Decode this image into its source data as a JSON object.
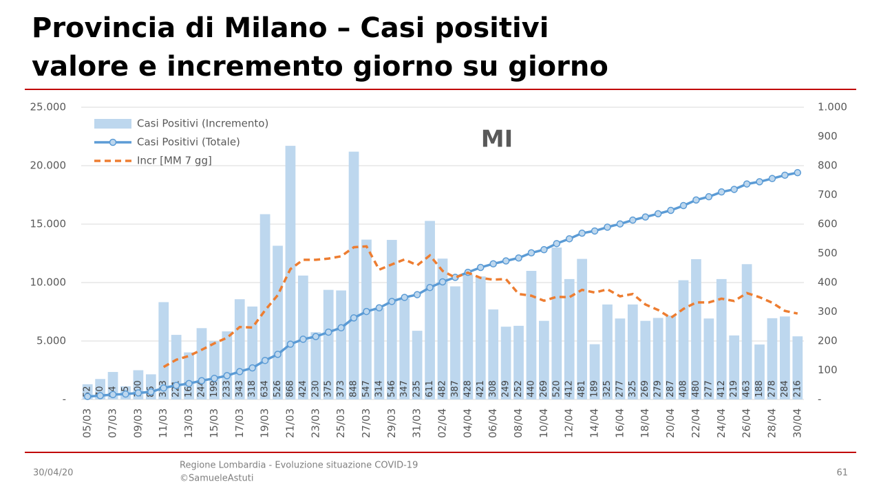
{
  "slide": {
    "title": [
      "Provincia di Milano – Casi positivi",
      "valore e incremento giorno su giorno"
    ],
    "footer_date": "30/04/20",
    "footer_source": "Regione Lombardia - Evoluzione situazione COVID-19",
    "footer_credit": "©SamueleAstuti",
    "page_number": "61"
  },
  "chart_data": {
    "type": "combo",
    "annotation": "MI",
    "legend": "upper left",
    "grid": true,
    "categories": [
      "05/03",
      null,
      "07/03",
      null,
      "09/03",
      null,
      "11/03",
      null,
      "13/03",
      null,
      "15/03",
      null,
      "17/03",
      null,
      "19/03",
      null,
      "21/03",
      null,
      "23/03",
      null,
      "25/03",
      null,
      "27/03",
      null,
      "29/03",
      null,
      "31/03",
      null,
      "02/04",
      null,
      "04/04",
      null,
      "06/04",
      null,
      "08/04",
      null,
      "10/04",
      null,
      "12/04",
      null,
      "14/04",
      null,
      "16/04",
      null,
      "18/04",
      null,
      "20/04",
      null,
      "22/04",
      null,
      "24/04",
      null,
      "26/04",
      null,
      "28/04",
      null,
      "30/04"
    ],
    "series": [
      {
        "name": "Casi Positivi (Incremento)",
        "type": "bar",
        "axis": "y2",
        "color": "#bdd7ee",
        "data_labels": true,
        "values": [
          52,
          70,
          94,
          45,
          100,
          86,
          333,
          221,
          161,
          244,
          199,
          233,
          343,
          318,
          634,
          526,
          868,
          424,
          230,
          375,
          373,
          848,
          547,
          314,
          546,
          347,
          235,
          611,
          482,
          387,
          428,
          421,
          308,
          249,
          252,
          440,
          269,
          520,
          412,
          481,
          189,
          325,
          277,
          325,
          269,
          279,
          287,
          408,
          480,
          277,
          412,
          219,
          463,
          188,
          278,
          284,
          216
        ]
      },
      {
        "name": "Casi Positivi (Totale)",
        "type": "line",
        "color": "#5b9bd5",
        "marker": "circle",
        "line_style": "solid",
        "values": [
          252,
          322,
          416,
          461,
          561,
          647,
          980,
          1201,
          1362,
          1606,
          1805,
          2038,
          2381,
          2699,
          3333,
          3859,
          4727,
          5151,
          5381,
          5756,
          6129,
          6977,
          7524,
          7838,
          8384,
          8731,
          8966,
          9577,
          10059,
          10446,
          10874,
          11295,
          11603,
          11852,
          12104,
          12544,
          12813,
          13333,
          13745,
          14226,
          14415,
          14740,
          15017,
          15342,
          15611,
          15890,
          16177,
          16585,
          17065,
          17342,
          17754,
          17973,
          18436,
          18624,
          18902,
          19186,
          19402
        ]
      },
      {
        "name": "Incr [MM 7 gg]",
        "type": "line",
        "axis": "y2",
        "color": "#ed7d31",
        "line_style": "dashed",
        "values": [
          null,
          null,
          null,
          null,
          null,
          null,
          111,
          136,
          149,
          170,
          192,
          211,
          248,
          246,
          305,
          357,
          446,
          478,
          478,
          482,
          490,
          521,
          524,
          444,
          462,
          479,
          459,
          493,
          440,
          417,
          434,
          416,
          410,
          412,
          361,
          355,
          338,
          351,
          350,
          375,
          366,
          377,
          353,
          361,
          325,
          306,
          279,
          310,
          332,
          332,
          345,
          337,
          364,
          350,
          331,
          303,
          294
        ]
      }
    ],
    "ylim": [
      0,
      25000
    ],
    "yticks": [
      {
        "value": 0,
        "label": "-"
      },
      {
        "value": 5000,
        "label": "5.000"
      },
      {
        "value": 10000,
        "label": "10.000"
      },
      {
        "value": 15000,
        "label": "15.000"
      },
      {
        "value": 20000,
        "label": "20.000"
      },
      {
        "value": 25000,
        "label": "25.000"
      }
    ],
    "y2lim": [
      0,
      1000
    ],
    "y2ticks": [
      {
        "value": 0,
        "label": "-"
      },
      100,
      200,
      300,
      400,
      500,
      600,
      700,
      800,
      900,
      {
        "value": 1000,
        "label": "1.000"
      }
    ]
  }
}
